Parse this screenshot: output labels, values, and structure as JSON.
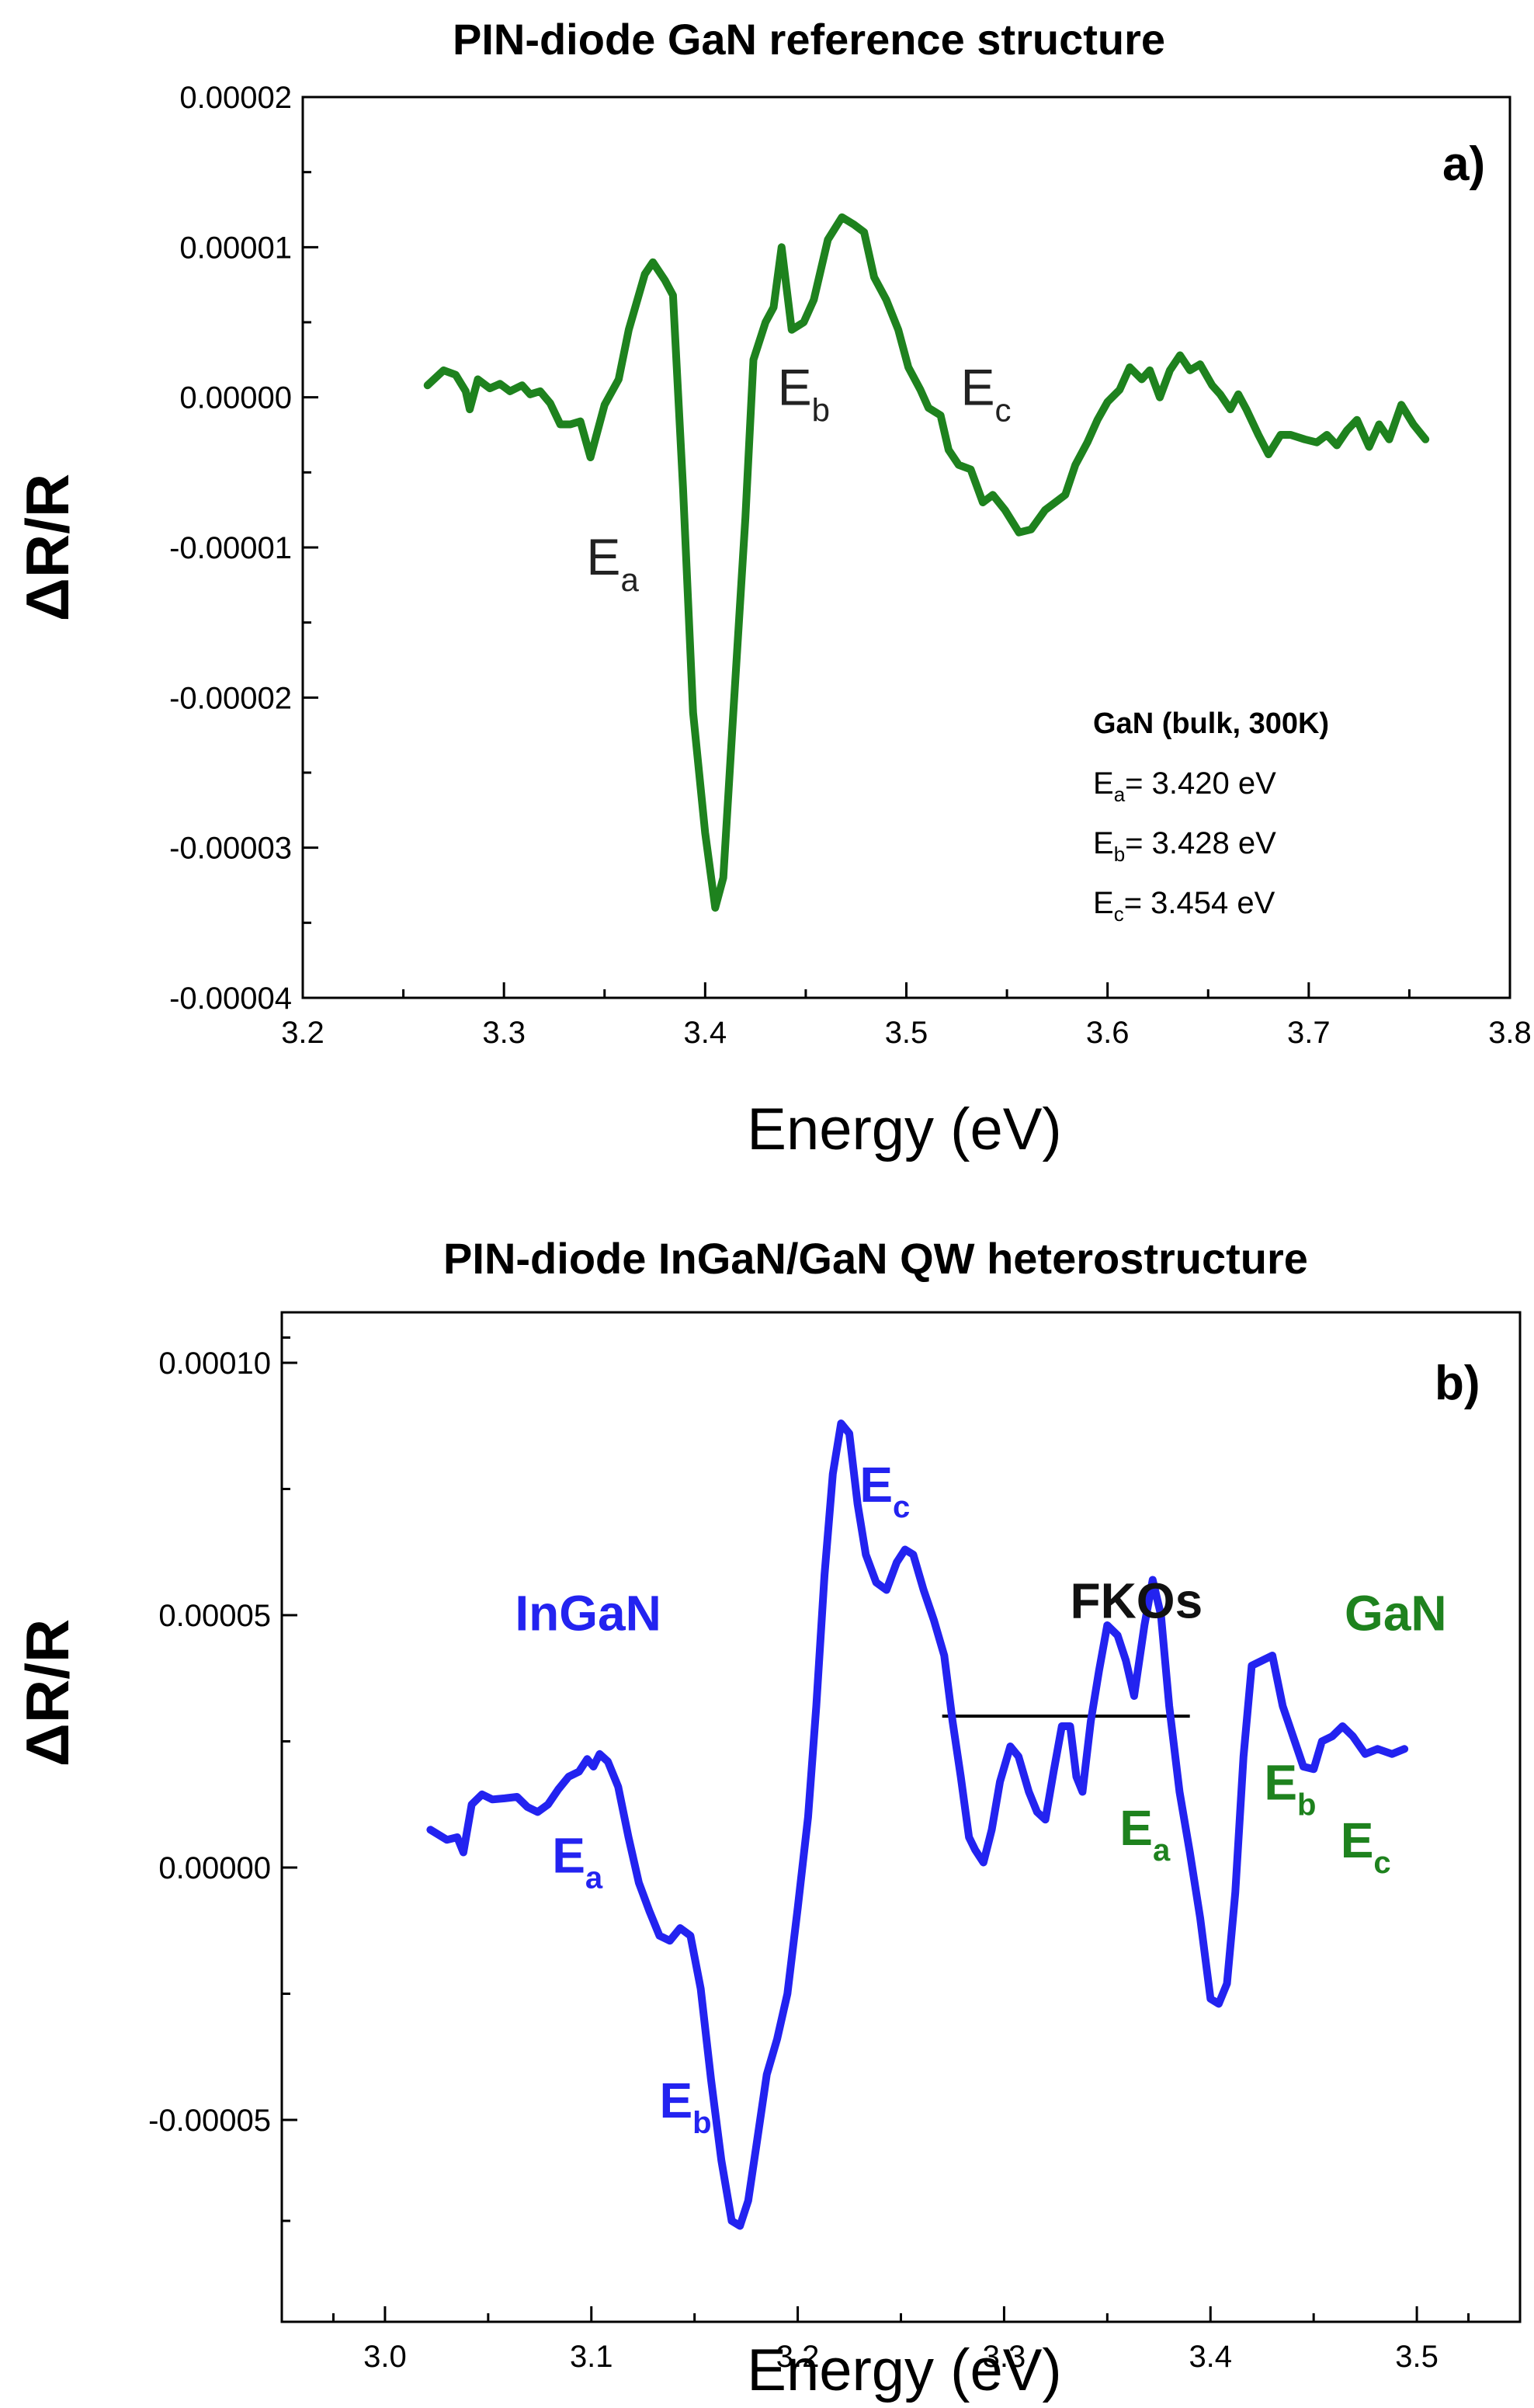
{
  "chart_data": [
    {
      "type": "line",
      "panel_label": "a)",
      "title": "PIN-diode GaN reference structure",
      "xlabel": "Energy (eV)",
      "ylabel": "ΔR/R",
      "xlim": [
        3.2,
        3.8
      ],
      "ylim": [
        -4e-05,
        2e-05
      ],
      "x_ticks": [
        3.2,
        3.3,
        3.4,
        3.5,
        3.6,
        3.7,
        3.8
      ],
      "x_tick_labels": [
        "3.2",
        "3.3",
        "3.4",
        "3.5",
        "3.6",
        "3.7",
        "3.8"
      ],
      "y_ticks": [
        2e-05,
        1e-05,
        0.0,
        -1e-05,
        -2e-05,
        -3e-05,
        -4e-05
      ],
      "y_tick_labels": [
        "0.00002",
        "0.00001",
        "0.00000",
        "-0.00001",
        "-0.00002",
        "-0.00003",
        "-0.00004"
      ],
      "series": [
        {
          "name": "GaN",
          "color": "#1e821e",
          "points": [
            [
              3.262,
              8e-07
            ],
            [
              3.27,
              1.8e-06
            ],
            [
              3.276,
              1.5e-06
            ],
            [
              3.281,
              4e-07
            ],
            [
              3.283,
              -8e-07
            ],
            [
              3.287,
              1.2e-06
            ],
            [
              3.293,
              6e-07
            ],
            [
              3.298,
              9e-07
            ],
            [
              3.303,
              4e-07
            ],
            [
              3.309,
              8e-07
            ],
            [
              3.313,
              2e-07
            ],
            [
              3.318,
              4e-07
            ],
            [
              3.323,
              -4e-07
            ],
            [
              3.328,
              -1.8e-06
            ],
            [
              3.333,
              -1.8e-06
            ],
            [
              3.338,
              -1.6e-06
            ],
            [
              3.343,
              -4e-06
            ],
            [
              3.35,
              -5e-07
            ],
            [
              3.357,
              1.2e-06
            ],
            [
              3.362,
              4.5e-06
            ],
            [
              3.37,
              8.2e-06
            ],
            [
              3.374,
              9e-06
            ],
            [
              3.38,
              7.8e-06
            ],
            [
              3.384,
              6.8e-06
            ],
            [
              3.389,
              -6e-06
            ],
            [
              3.394,
              -2.1e-05
            ],
            [
              3.4,
              -2.9e-05
            ],
            [
              3.405,
              -3.4e-05
            ],
            [
              3.409,
              -3.2e-05
            ],
            [
              3.414,
              -2.1e-05
            ],
            [
              3.42,
              -8e-06
            ],
            [
              3.424,
              2.5e-06
            ],
            [
              3.43,
              5e-06
            ],
            [
              3.434,
              6e-06
            ],
            [
              3.438,
              1e-05
            ],
            [
              3.443,
              4.5e-06
            ],
            [
              3.449,
              5e-06
            ],
            [
              3.454,
              6.5e-06
            ],
            [
              3.461,
              1.05e-05
            ],
            [
              3.468,
              1.2e-05
            ],
            [
              3.474,
              1.15e-05
            ],
            [
              3.479,
              1.1e-05
            ],
            [
              3.484,
              8e-06
            ],
            [
              3.49,
              6.5e-06
            ],
            [
              3.496,
              4.5e-06
            ],
            [
              3.501,
              2e-06
            ],
            [
              3.507,
              5e-07
            ],
            [
              3.511,
              -7e-07
            ],
            [
              3.517,
              -1.2e-06
            ],
            [
              3.521,
              -3.5e-06
            ],
            [
              3.526,
              -4.5e-06
            ],
            [
              3.532,
              -4.8e-06
            ],
            [
              3.538,
              -7e-06
            ],
            [
              3.543,
              -6.5e-06
            ],
            [
              3.549,
              -7.5e-06
            ],
            [
              3.556,
              -9e-06
            ],
            [
              3.562,
              -8.8e-06
            ],
            [
              3.569,
              -7.5e-06
            ],
            [
              3.574,
              -7e-06
            ],
            [
              3.579,
              -6.5e-06
            ],
            [
              3.584,
              -4.5e-06
            ],
            [
              3.59,
              -3e-06
            ],
            [
              3.595,
              -1.5e-06
            ],
            [
              3.6,
              -3e-07
            ],
            [
              3.606,
              5e-07
            ],
            [
              3.611,
              2e-06
            ],
            [
              3.617,
              1.2e-06
            ],
            [
              3.621,
              1.8e-06
            ],
            [
              3.626,
              0.0
            ],
            [
              3.631,
              1.8e-06
            ],
            [
              3.636,
              2.8e-06
            ],
            [
              3.641,
              1.8e-06
            ],
            [
              3.646,
              2.2e-06
            ],
            [
              3.652,
              8e-07
            ],
            [
              3.656,
              2e-07
            ],
            [
              3.661,
              -8e-07
            ],
            [
              3.665,
              2e-07
            ],
            [
              3.669,
              -8e-07
            ],
            [
              3.675,
              -2.5e-06
            ],
            [
              3.68,
              -3.8e-06
            ],
            [
              3.686,
              -2.5e-06
            ],
            [
              3.691,
              -2.5e-06
            ],
            [
              3.698,
              -2.8e-06
            ],
            [
              3.704,
              -3e-06
            ],
            [
              3.709,
              -2.5e-06
            ],
            [
              3.714,
              -3.2e-06
            ],
            [
              3.719,
              -2.2e-06
            ],
            [
              3.724,
              -1.5e-06
            ],
            [
              3.73,
              -3.3e-06
            ],
            [
              3.735,
              -1.8e-06
            ],
            [
              3.74,
              -2.8e-06
            ],
            [
              3.746,
              -5e-07
            ],
            [
              3.752,
              -1.8e-06
            ],
            [
              3.758,
              -2.8e-06
            ]
          ]
        }
      ],
      "annotations": [
        {
          "base": "E",
          "sub": "a",
          "x": 3.341,
          "y": -1.18e-05,
          "color": "#222222"
        },
        {
          "base": "E",
          "sub": "b",
          "x": 3.436,
          "y": -5e-07,
          "color": "#222222"
        },
        {
          "base": "E",
          "sub": "c",
          "x": 3.527,
          "y": -5e-07,
          "color": "#222222"
        }
      ],
      "info_box": {
        "heading": "GaN (bulk, 300K)",
        "lines": [
          {
            "base": "E",
            "sub": "a",
            "text": "= 3.420 eV"
          },
          {
            "base": "E",
            "sub": "b",
            "text": "= 3.428 eV"
          },
          {
            "base": "E",
            "sub": "c",
            "text": "= 3.454 eV"
          }
        ]
      }
    },
    {
      "type": "line",
      "panel_label": "b)",
      "title": "PIN-diode InGaN/GaN QW heterostructure",
      "xlabel": "Energy (eV)",
      "ylabel": "ΔR/R",
      "xlim": [
        2.95,
        3.55
      ],
      "ylim": [
        -9e-05,
        0.00011
      ],
      "x_ticks": [
        3.0,
        3.1,
        3.2,
        3.3,
        3.4,
        3.5
      ],
      "x_tick_labels": [
        "3.0",
        "3.1",
        "3.2",
        "3.3",
        "3.4",
        "3.5"
      ],
      "y_ticks": [
        0.0001,
        5e-05,
        0.0,
        -5e-05
      ],
      "y_tick_labels": [
        "0.00010",
        "0.00005",
        "0.00000",
        "-0.00005"
      ],
      "series": [
        {
          "name": "InGaN/GaN QW",
          "color": "#2323f0",
          "points": [
            [
              3.022,
              7.5e-06
            ],
            [
              3.03,
              5.5e-06
            ],
            [
              3.035,
              6e-06
            ],
            [
              3.038,
              3e-06
            ],
            [
              3.042,
              1.25e-05
            ],
            [
              3.047,
              1.45e-05
            ],
            [
              3.052,
              1.35e-05
            ],
            [
              3.058,
              1.37e-05
            ],
            [
              3.064,
              1.4e-05
            ],
            [
              3.069,
              1.2e-05
            ],
            [
              3.074,
              1.1e-05
            ],
            [
              3.079,
              1.25e-05
            ],
            [
              3.084,
              1.55e-05
            ],
            [
              3.089,
              1.8e-05
            ],
            [
              3.094,
              1.9e-05
            ],
            [
              3.098,
              2.15e-05
            ],
            [
              3.101,
              2e-05
            ],
            [
              3.104,
              2.25e-05
            ],
            [
              3.108,
              2.1e-05
            ],
            [
              3.113,
              1.6e-05
            ],
            [
              3.118,
              6e-06
            ],
            [
              3.123,
              -3e-06
            ],
            [
              3.128,
              -8.5e-06
            ],
            [
              3.133,
              -1.35e-05
            ],
            [
              3.138,
              -1.45e-05
            ],
            [
              3.143,
              -1.2e-05
            ],
            [
              3.148,
              -1.35e-05
            ],
            [
              3.153,
              -2.4e-05
            ],
            [
              3.158,
              -4.2e-05
            ],
            [
              3.163,
              -5.8e-05
            ],
            [
              3.168,
              -7e-05
            ],
            [
              3.172,
              -7.1e-05
            ],
            [
              3.176,
              -6.6e-05
            ],
            [
              3.18,
              -5.5e-05
            ],
            [
              3.185,
              -4.1e-05
            ],
            [
              3.19,
              -3.4e-05
            ],
            [
              3.195,
              -2.5e-05
            ],
            [
              3.2,
              -8e-06
            ],
            [
              3.205,
              1e-05
            ],
            [
              3.209,
              3.2e-05
            ],
            [
              3.213,
              5.8e-05
            ],
            [
              3.217,
              7.8e-05
            ],
            [
              3.221,
              8.8e-05
            ],
            [
              3.225,
              8.6e-05
            ],
            [
              3.229,
              7.2e-05
            ],
            [
              3.233,
              6.2e-05
            ],
            [
              3.238,
              5.65e-05
            ],
            [
              3.243,
              5.5e-05
            ],
            [
              3.248,
              6.05e-05
            ],
            [
              3.252,
              6.3e-05
            ],
            [
              3.256,
              6.2e-05
            ],
            [
              3.261,
              5.5e-05
            ],
            [
              3.266,
              4.9e-05
            ],
            [
              3.271,
              4.2e-05
            ],
            [
              3.275,
              2.9e-05
            ],
            [
              3.279,
              1.8e-05
            ],
            [
              3.283,
              6e-06
            ],
            [
              3.286,
              3.5e-06
            ],
            [
              3.29,
              1e-06
            ],
            [
              3.294,
              7.5e-06
            ],
            [
              3.298,
              1.7e-05
            ],
            [
              3.303,
              2.4e-05
            ],
            [
              3.307,
              2.2e-05
            ],
            [
              3.312,
              1.5e-05
            ],
            [
              3.316,
              1.1e-05
            ],
            [
              3.32,
              9.5e-06
            ],
            [
              3.324,
              1.9e-05
            ],
            [
              3.328,
              2.8e-05
            ],
            [
              3.332,
              2.8e-05
            ],
            [
              3.335,
              1.8e-05
            ],
            [
              3.338,
              1.5e-05
            ],
            [
              3.342,
              2.9e-05
            ],
            [
              3.346,
              3.9e-05
            ],
            [
              3.35,
              4.8e-05
            ],
            [
              3.355,
              4.6e-05
            ],
            [
              3.359,
              4.1e-05
            ],
            [
              3.363,
              3.4e-05
            ],
            [
              3.368,
              4.8e-05
            ],
            [
              3.372,
              5.7e-05
            ],
            [
              3.376,
              5e-05
            ],
            [
              3.38,
              3.2e-05
            ],
            [
              3.385,
              1.5e-05
            ],
            [
              3.39,
              3e-06
            ],
            [
              3.395,
              -1e-05
            ],
            [
              3.4,
              -2.6e-05
            ],
            [
              3.404,
              -2.7e-05
            ],
            [
              3.408,
              -2.3e-05
            ],
            [
              3.412,
              -5e-06
            ],
            [
              3.416,
              2.2e-05
            ],
            [
              3.42,
              4e-05
            ],
            [
              3.425,
              4.1e-05
            ],
            [
              3.43,
              4.2e-05
            ],
            [
              3.435,
              3.2e-05
            ],
            [
              3.44,
              2.6e-05
            ],
            [
              3.445,
              2e-05
            ],
            [
              3.45,
              1.95e-05
            ],
            [
              3.454,
              2.5e-05
            ],
            [
              3.459,
              2.6e-05
            ],
            [
              3.464,
              2.8e-05
            ],
            [
              3.469,
              2.6e-05
            ],
            [
              3.475,
              2.25e-05
            ],
            [
              3.481,
              2.35e-05
            ],
            [
              3.488,
              2.25e-05
            ],
            [
              3.494,
              2.35e-05
            ]
          ]
        }
      ],
      "reference_line": {
        "x1": 3.27,
        "x2": 3.39,
        "y": 3e-05,
        "color": "#000000"
      },
      "annotations": [
        {
          "text": "InGaN",
          "x": 3.063,
          "y": 4.7e-05,
          "color": "#2323f0",
          "bold": true
        },
        {
          "text": "FKOs",
          "x": 3.332,
          "y": 4.95e-05,
          "color": "#111111",
          "bold": true
        },
        {
          "text": "GaN",
          "x": 3.465,
          "y": 4.7e-05,
          "color": "#1e821e",
          "bold": true
        },
        {
          "base": "E",
          "sub": "a",
          "x": 3.081,
          "y": -1e-06,
          "color": "#2323f0",
          "bold": true
        },
        {
          "base": "E",
          "sub": "b",
          "x": 3.133,
          "y": -4.95e-05,
          "color": "#2323f0",
          "bold": true
        },
        {
          "base": "E",
          "sub": "c",
          "x": 3.23,
          "y": 7.25e-05,
          "color": "#2323f0",
          "bold": true
        },
        {
          "base": "E",
          "sub": "a",
          "x": 3.356,
          "y": 4.5e-06,
          "color": "#1e821e",
          "bold": true
        },
        {
          "base": "E",
          "sub": "b",
          "x": 3.426,
          "y": 1.35e-05,
          "color": "#1e821e",
          "bold": true
        },
        {
          "base": "E",
          "sub": "c",
          "x": 3.463,
          "y": 2e-06,
          "color": "#1e821e",
          "bold": true
        }
      ]
    }
  ]
}
